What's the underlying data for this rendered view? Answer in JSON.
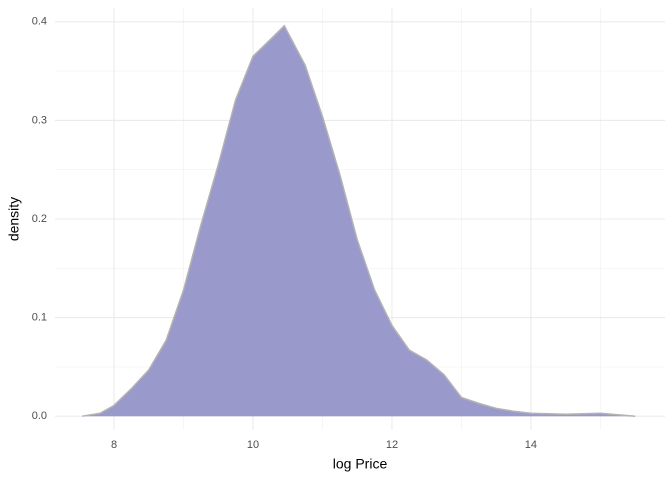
{
  "chart_data": {
    "type": "density",
    "x_label": "log Price",
    "y_label": "density",
    "x": [
      7.54,
      7.8,
      8.0,
      8.25,
      8.5,
      8.75,
      9.0,
      9.25,
      9.5,
      9.75,
      10.0,
      10.25,
      10.45,
      10.75,
      11.0,
      11.25,
      11.5,
      11.75,
      12.0,
      12.25,
      12.5,
      12.75,
      13.0,
      13.25,
      13.5,
      13.75,
      14.0,
      14.5,
      15.0,
      15.5
    ],
    "values": [
      0,
      0.003,
      0.011,
      0.028,
      0.047,
      0.077,
      0.128,
      0.194,
      0.255,
      0.321,
      0.365,
      0.382,
      0.396,
      0.356,
      0.304,
      0.245,
      0.179,
      0.128,
      0.092,
      0.067,
      0.057,
      0.042,
      0.019,
      0.013,
      0.008,
      0.005,
      0.003,
      0.002,
      0.003,
      0
    ],
    "color": "#9a99cb",
    "line_color": "#b3b3b3",
    "xlim": [
      7.15,
      15.93
    ],
    "ylim": [
      -0.014,
      0.414
    ],
    "xticks": [
      8,
      10,
      12,
      14
    ],
    "yticks": [
      {
        "value": 0,
        "label": "0.0"
      },
      0.1,
      0.2,
      0.3,
      0.4
    ],
    "x_minor_ticks": [
      9,
      11,
      13,
      15
    ],
    "y_minor_ticks": [
      0.05,
      0.15,
      0.25,
      0.35
    ],
    "grid": true
  }
}
